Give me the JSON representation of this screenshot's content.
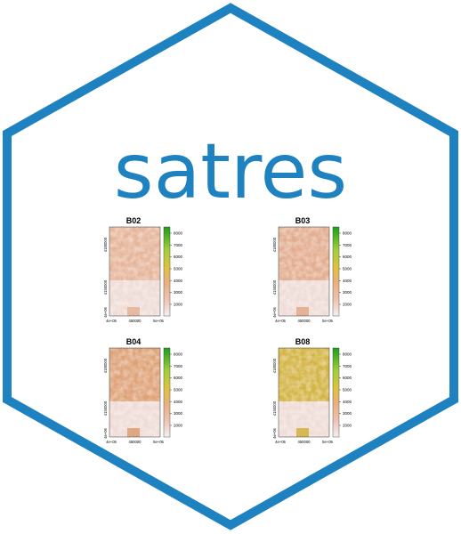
{
  "logo": {
    "text": "satres",
    "brand_color": "#1f82c0",
    "background": "#ffffff"
  },
  "panels": [
    {
      "title": "B02",
      "y_ticks": [
        "4e+06",
        "4150000",
        "4180000"
      ],
      "x_ticks": [
        "4e+05",
        "450000",
        "5e+05"
      ],
      "legend_ticks": [
        "2000",
        "3000",
        "4000",
        "5000",
        "6000",
        "7000",
        "8000"
      ],
      "tint": "#e6b59a"
    },
    {
      "title": "B03",
      "y_ticks": [
        "4e+06",
        "4150000",
        "4180000"
      ],
      "x_ticks": [
        "4e+05",
        "450000",
        "5e+05"
      ],
      "legend_ticks": [
        "2000",
        "3000",
        "4000",
        "5000",
        "6000",
        "7000",
        "8000"
      ],
      "tint": "#e3ad8f"
    },
    {
      "title": "B04",
      "y_ticks": [
        "4e+06",
        "4150000",
        "4180000"
      ],
      "x_ticks": [
        "4e+05",
        "450000",
        "5e+05"
      ],
      "legend_ticks": [
        "2000",
        "3000",
        "4000",
        "5000",
        "6000",
        "7000",
        "8000"
      ],
      "tint": "#dea277"
    },
    {
      "title": "B08",
      "y_ticks": [
        "4e+06",
        "4150000",
        "4180000"
      ],
      "x_ticks": [
        "4e+05",
        "450000",
        "5e+05"
      ],
      "legend_ticks": [
        "2000",
        "3000",
        "4000",
        "5000",
        "6000",
        "7000",
        "8000"
      ],
      "tint": "#d4b445"
    }
  ]
}
